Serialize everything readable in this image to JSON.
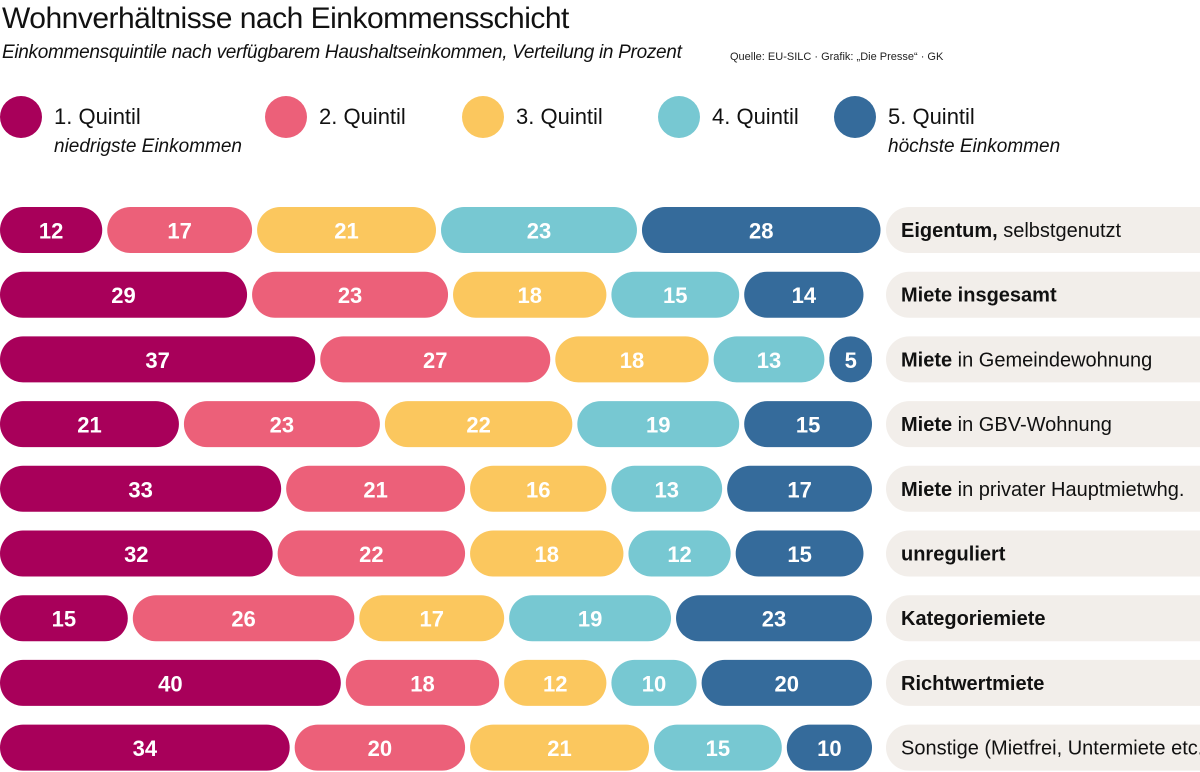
{
  "title": "Wohnverhältnisse nach Einkommensschicht",
  "subtitle": "Einkommensquintile nach verfügbarem Haushaltseinkommen, Verteilung in Prozent",
  "source": "Quelle: EU-SILC · Grafik: „Die Presse“ · GK",
  "legend": [
    {
      "label": "1. Quintil",
      "sub": "niedrigste Einkommen",
      "color": "#a8005a"
    },
    {
      "label": "2. Quintil",
      "sub": "",
      "color": "#ec6079"
    },
    {
      "label": "3. Quintil",
      "sub": "",
      "color": "#fbc75e"
    },
    {
      "label": "4. Quintil",
      "sub": "",
      "color": "#77c8d2"
    },
    {
      "label": "5. Quintil",
      "sub": "höchste Einkommen",
      "color": "#356b9b"
    }
  ],
  "chart_data": {
    "type": "bar",
    "orientation": "horizontal-stacked",
    "unit": "%",
    "categories": [
      {
        "bold": "Eigentum,",
        "regular": " selbstgenutzt"
      },
      {
        "bold": "Miete insgesamt",
        "regular": ""
      },
      {
        "bold": "Miete",
        "regular": " in Gemeindewohnung"
      },
      {
        "bold": "Miete",
        "regular": " in GBV-Wohnung"
      },
      {
        "bold": "Miete",
        "regular": " in privater Hauptmietwhg."
      },
      {
        "bold": "unreguliert",
        "regular": ""
      },
      {
        "bold": "Kategoriemiete",
        "regular": ""
      },
      {
        "bold": "Richtwertmiete",
        "regular": ""
      },
      {
        "bold": "",
        "regular": "Sonstige (Mietfrei, Untermiete etc.)"
      }
    ],
    "series": [
      {
        "name": "1. Quintil",
        "values": [
          12,
          29,
          37,
          21,
          33,
          32,
          15,
          40,
          34
        ]
      },
      {
        "name": "2. Quintil",
        "values": [
          17,
          23,
          27,
          23,
          21,
          22,
          26,
          18,
          20
        ]
      },
      {
        "name": "3. Quintil",
        "values": [
          21,
          18,
          18,
          22,
          16,
          18,
          17,
          12,
          21
        ]
      },
      {
        "name": "4. Quintil",
        "values": [
          23,
          15,
          13,
          19,
          13,
          12,
          19,
          10,
          15
        ]
      },
      {
        "name": "5. Quintil",
        "values": [
          28,
          14,
          5,
          15,
          17,
          15,
          23,
          20,
          10
        ]
      }
    ],
    "label_background": "#f2eeea"
  }
}
